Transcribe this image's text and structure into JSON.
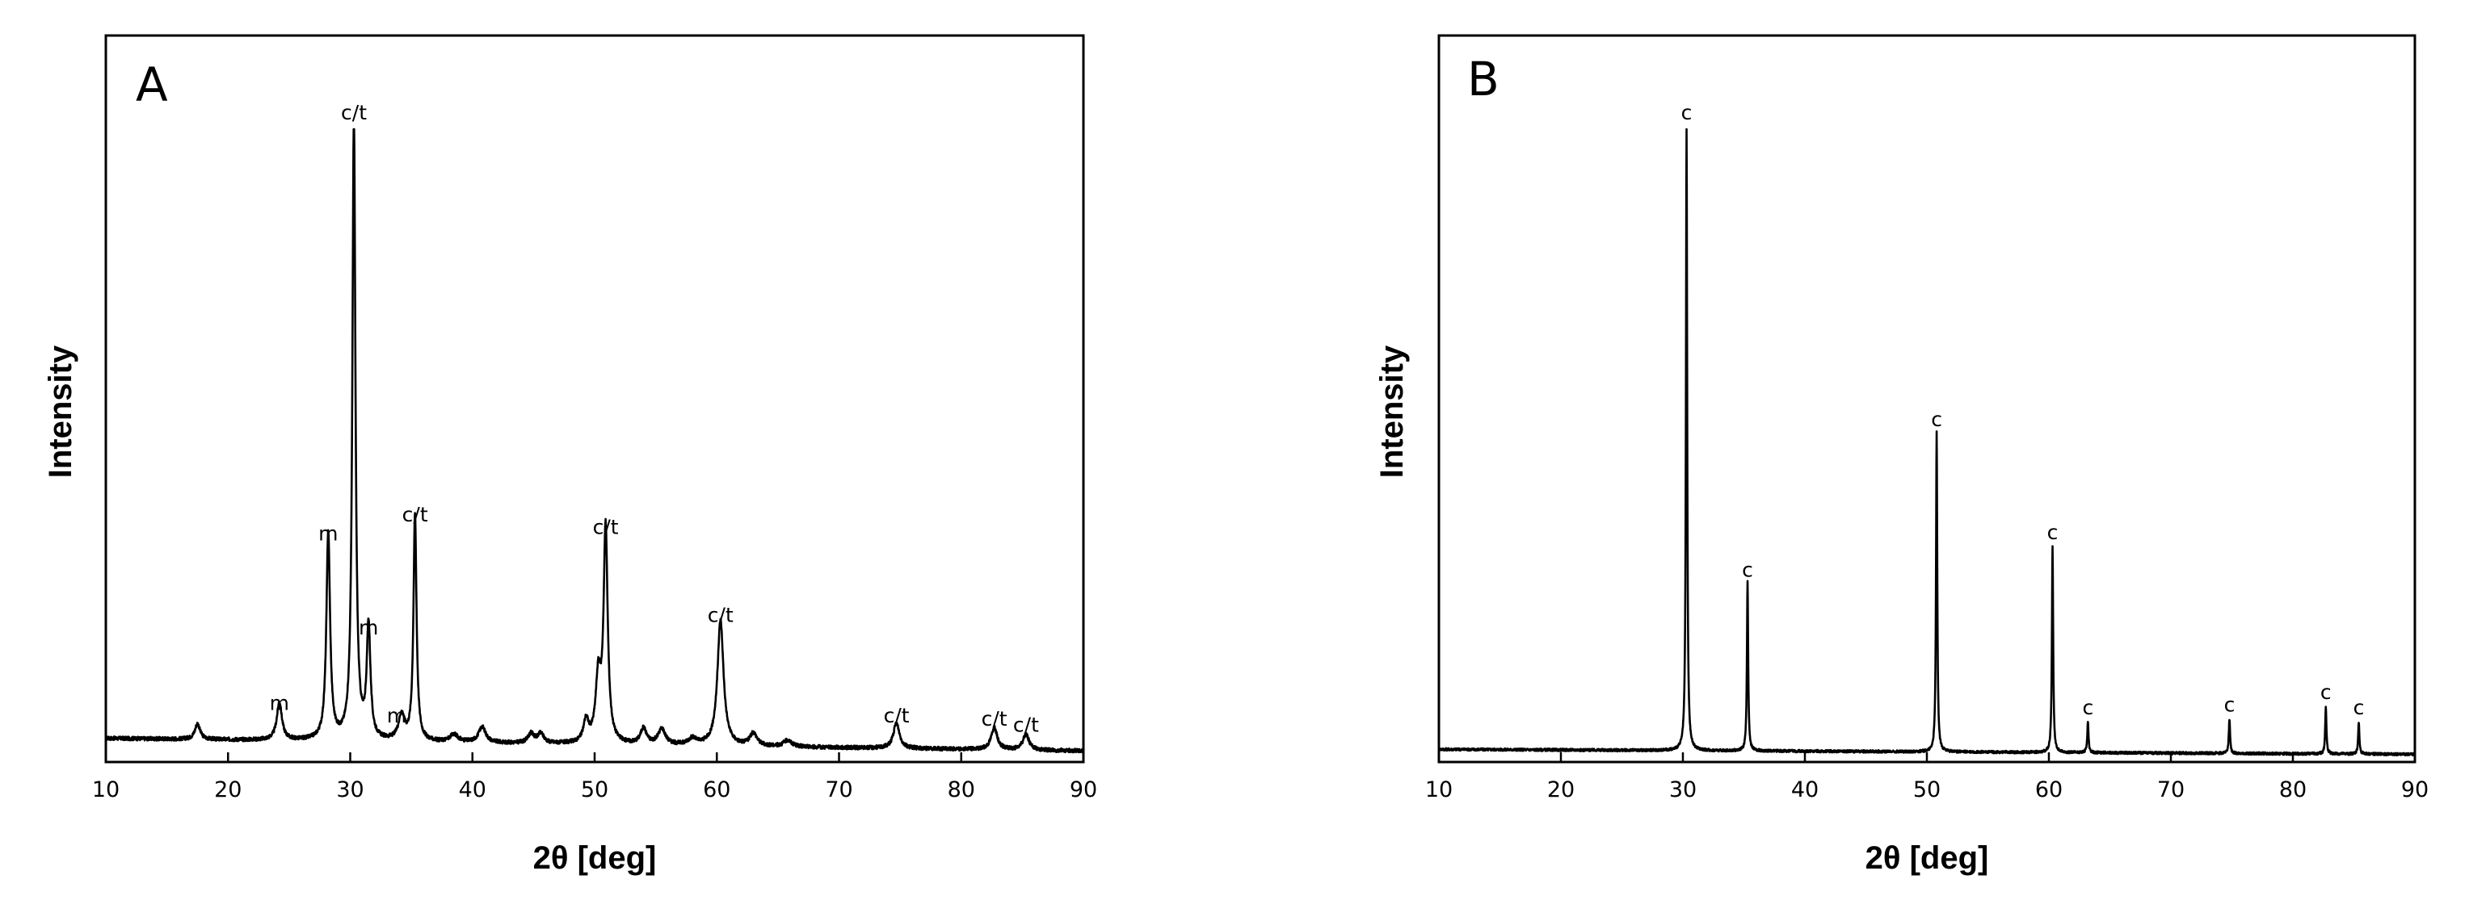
{
  "chart_data": [
    {
      "type": "line",
      "panel_label": "A",
      "xlabel": "2θ [deg]",
      "ylabel": "Intensity",
      "xlim": [
        10,
        90
      ],
      "ylim": [
        0,
        1.0
      ],
      "xticks": [
        "10",
        "20",
        "30",
        "40",
        "50",
        "60",
        "70",
        "80",
        "90"
      ],
      "y_tick_labels": false,
      "grid": false,
      "baseline": {
        "start": 0.03,
        "end": 0.01,
        "noise": 0.003
      },
      "peaks": [
        {
          "x": 17.5,
          "y": 0.025,
          "w": 0.25
        },
        {
          "x": 24.2,
          "y": 0.06,
          "w": 0.25
        },
        {
          "x": 28.2,
          "y": 0.33,
          "w": 0.18
        },
        {
          "x": 30.3,
          "y": 1.0,
          "w": 0.15
        },
        {
          "x": 31.5,
          "y": 0.18,
          "w": 0.18
        },
        {
          "x": 34.2,
          "y": 0.04,
          "w": 0.3
        },
        {
          "x": 35.3,
          "y": 0.36,
          "w": 0.15
        },
        {
          "x": 38.5,
          "y": 0.012,
          "w": 0.4
        },
        {
          "x": 40.8,
          "y": 0.025,
          "w": 0.35
        },
        {
          "x": 44.8,
          "y": 0.015,
          "w": 0.3
        },
        {
          "x": 45.6,
          "y": 0.015,
          "w": 0.3
        },
        {
          "x": 49.3,
          "y": 0.035,
          "w": 0.25
        },
        {
          "x": 50.3,
          "y": 0.1,
          "w": 0.25
        },
        {
          "x": 50.9,
          "y": 0.34,
          "w": 0.2
        },
        {
          "x": 54.0,
          "y": 0.025,
          "w": 0.3
        },
        {
          "x": 55.5,
          "y": 0.025,
          "w": 0.35
        },
        {
          "x": 58.0,
          "y": 0.01,
          "w": 0.4
        },
        {
          "x": 60.3,
          "y": 0.2,
          "w": 0.3
        },
        {
          "x": 63.0,
          "y": 0.02,
          "w": 0.35
        },
        {
          "x": 65.8,
          "y": 0.01,
          "w": 0.4
        },
        {
          "x": 74.7,
          "y": 0.04,
          "w": 0.3
        },
        {
          "x": 82.7,
          "y": 0.035,
          "w": 0.3
        },
        {
          "x": 85.3,
          "y": 0.025,
          "w": 0.3
        }
      ],
      "annotations": [
        {
          "text": "m",
          "x": 24.2,
          "y": 0.06
        },
        {
          "text": "m",
          "x": 28.2,
          "y": 0.33
        },
        {
          "text": "c/t",
          "x": 30.3,
          "y": 1.0
        },
        {
          "text": "m",
          "x": 31.5,
          "y": 0.18
        },
        {
          "text": "m",
          "x": 33.8,
          "y": 0.04
        },
        {
          "text": "c/t",
          "x": 35.3,
          "y": 0.36
        },
        {
          "text": "c/t",
          "x": 50.9,
          "y": 0.34
        },
        {
          "text": "c/t",
          "x": 60.3,
          "y": 0.2
        },
        {
          "text": "c/t",
          "x": 74.7,
          "y": 0.04
        },
        {
          "text": "c/t",
          "x": 82.7,
          "y": 0.035
        },
        {
          "text": "c/t",
          "x": 85.3,
          "y": 0.025
        }
      ]
    },
    {
      "type": "line",
      "panel_label": "B",
      "xlabel": "2θ [deg]",
      "ylabel": "Intensity",
      "xlim": [
        10,
        90
      ],
      "ylim": [
        0,
        1.0
      ],
      "xticks": [
        "10",
        "20",
        "30",
        "40",
        "50",
        "60",
        "70",
        "80",
        "90"
      ],
      "y_tick_labels": false,
      "grid": false,
      "baseline": {
        "start": 0.01,
        "end": 0.002,
        "noise": 0.002
      },
      "peaks": [
        {
          "x": 30.3,
          "y": 1.0,
          "w": 0.06
        },
        {
          "x": 35.3,
          "y": 0.27,
          "w": 0.06
        },
        {
          "x": 50.8,
          "y": 0.51,
          "w": 0.06
        },
        {
          "x": 60.3,
          "y": 0.33,
          "w": 0.06
        },
        {
          "x": 63.2,
          "y": 0.05,
          "w": 0.06
        },
        {
          "x": 74.8,
          "y": 0.055,
          "w": 0.06
        },
        {
          "x": 82.7,
          "y": 0.075,
          "w": 0.06
        },
        {
          "x": 85.4,
          "y": 0.05,
          "w": 0.06
        }
      ],
      "annotations": [
        {
          "text": "c",
          "x": 30.3,
          "y": 1.0
        },
        {
          "text": "c",
          "x": 35.3,
          "y": 0.27
        },
        {
          "text": "c",
          "x": 50.8,
          "y": 0.51
        },
        {
          "text": "c",
          "x": 60.3,
          "y": 0.33
        },
        {
          "text": "c",
          "x": 63.2,
          "y": 0.05
        },
        {
          "text": "c",
          "x": 74.8,
          "y": 0.055
        },
        {
          "text": "c",
          "x": 82.7,
          "y": 0.075
        },
        {
          "text": "c",
          "x": 85.4,
          "y": 0.05
        }
      ]
    }
  ]
}
